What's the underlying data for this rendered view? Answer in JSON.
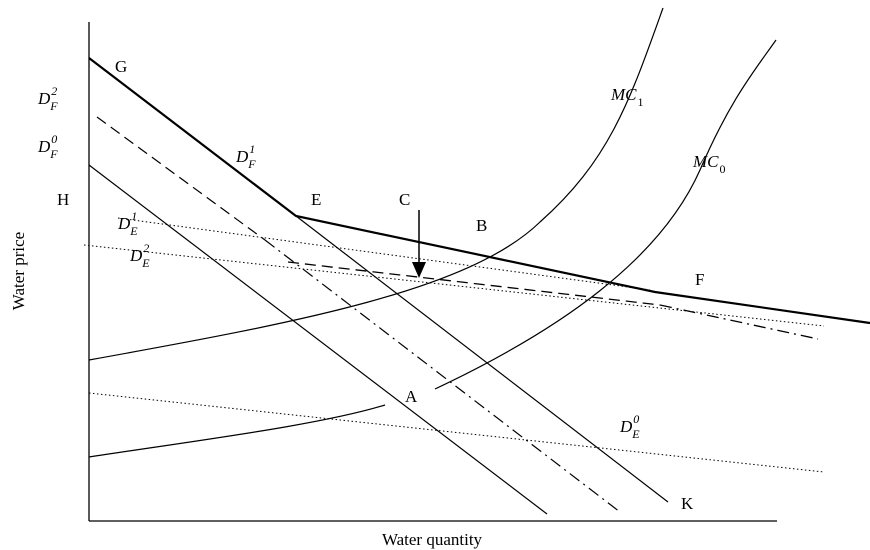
{
  "axes": {
    "x_title": "Water quantity",
    "y_title": "Water price"
  },
  "points": {
    "G": "G",
    "H": "H",
    "E": "E",
    "C": "C",
    "B": "B",
    "F": "F",
    "A": "A",
    "K": "K"
  },
  "curves": {
    "df2": {
      "base": "D",
      "sub": "F",
      "sup": "2"
    },
    "df0": {
      "base": "D",
      "sub": "F",
      "sup": "0"
    },
    "df1": {
      "base": "D",
      "sub": "F",
      "sup": "1"
    },
    "de1": {
      "base": "D",
      "sub": "E",
      "sup": "1"
    },
    "de2": {
      "base": "D",
      "sub": "E",
      "sup": "2"
    },
    "de0": {
      "base": "D",
      "sub": "E",
      "sup": "0"
    },
    "mc1": {
      "base": "MC",
      "sub": "1"
    },
    "mc0": {
      "base": "MC",
      "sub": "0"
    }
  }
}
